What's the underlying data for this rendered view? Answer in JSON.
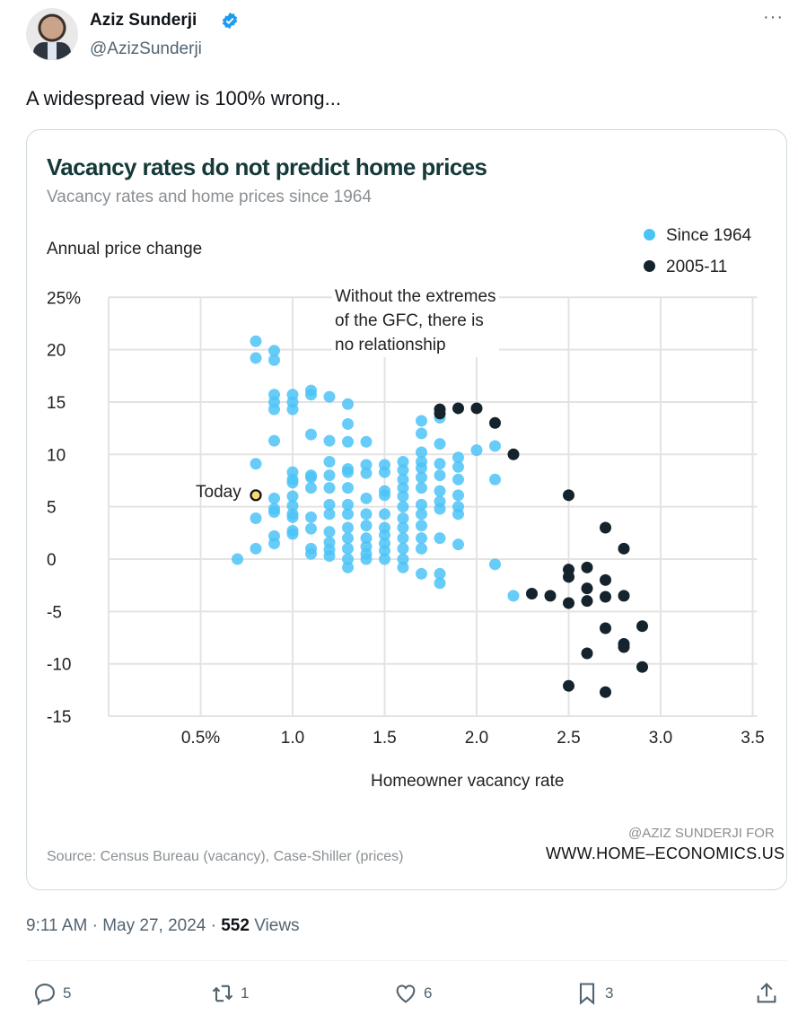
{
  "author": {
    "name": "Aziz Sunderji",
    "handle": "@AzizSunderji",
    "verified": true
  },
  "more_icon": "more-horizontal-icon",
  "tweet_text": "A widespread view is 100% wrong...",
  "meta": {
    "time": "9:11 AM",
    "date": "May 27, 2024",
    "views_count": "552",
    "views_label": "Views",
    "separator": "·"
  },
  "actions": {
    "replies": "5",
    "reposts": "1",
    "likes": "6",
    "bookmarks": "3"
  },
  "colors": {
    "since1964": "#4cc3f7",
    "gfc": "#14232c",
    "today": "#f5da7a",
    "title": "#16393a"
  },
  "chart_data": {
    "type": "scatter",
    "title": "Vacancy rates do not predict home prices",
    "subtitle": "Vacancy rates and home prices since 1964",
    "ylabel": "Annual price change",
    "xlabel": "Homeowner vacancy rate",
    "xlim": [
      0,
      3.5
    ],
    "ylim": [
      -15,
      25
    ],
    "x_ticks": [
      {
        "v": 0.5,
        "label": "0.5%"
      },
      {
        "v": 1.0,
        "label": "1.0"
      },
      {
        "v": 1.5,
        "label": "1.5"
      },
      {
        "v": 2.0,
        "label": "2.0"
      },
      {
        "v": 2.5,
        "label": "2.5"
      },
      {
        "v": 3.0,
        "label": "3.0"
      },
      {
        "v": 3.5,
        "label": "3.5"
      }
    ],
    "y_ticks": [
      {
        "v": 25,
        "label": "25%"
      },
      {
        "v": 20,
        "label": "20"
      },
      {
        "v": 15,
        "label": "15"
      },
      {
        "v": 10,
        "label": "10"
      },
      {
        "v": 5,
        "label": "5"
      },
      {
        "v": 0,
        "label": "0"
      },
      {
        "v": -5,
        "label": "-5"
      },
      {
        "v": -10,
        "label": "-10"
      },
      {
        "v": -15,
        "label": "-15"
      }
    ],
    "grid": true,
    "legend": {
      "placement": "top-right",
      "entries": [
        "Since 1964",
        "2005-11"
      ]
    },
    "annotations": {
      "gfc_lines": [
        "Without the extremes",
        "of the GFC, there is",
        "no relationship"
      ],
      "today": "Today"
    },
    "credit": [
      "@AZIZ SUNDERJI FOR",
      "WWW.HOME–ECONOMICS.US"
    ],
    "source": "Source: Census Bureau (vacancy), Case-Shiller (prices)",
    "today_point": {
      "x": 0.8,
      "y": 6.1
    },
    "series": [
      {
        "name": "Since 1964",
        "points": [
          [
            0.7,
            0
          ],
          [
            0.8,
            20.8
          ],
          [
            0.8,
            19.2
          ],
          [
            0.8,
            9.1
          ],
          [
            0.8,
            3.9
          ],
          [
            0.8,
            1.0
          ],
          [
            0.9,
            19.9
          ],
          [
            0.9,
            19.0
          ],
          [
            0.9,
            15.7
          ],
          [
            0.9,
            15.0
          ],
          [
            0.9,
            14.3
          ],
          [
            0.9,
            11.3
          ],
          [
            0.9,
            5.8
          ],
          [
            0.9,
            4.8
          ],
          [
            0.9,
            4.5
          ],
          [
            0.9,
            2.2
          ],
          [
            0.9,
            1.5
          ],
          [
            1.0,
            15.7
          ],
          [
            1.0,
            15.0
          ],
          [
            1.0,
            14.3
          ],
          [
            1.0,
            8.3
          ],
          [
            1.0,
            7.6
          ],
          [
            1.0,
            7.3
          ],
          [
            1.0,
            6.0
          ],
          [
            1.0,
            5.1
          ],
          [
            1.0,
            4.3
          ],
          [
            1.0,
            4.0
          ],
          [
            1.0,
            2.7
          ],
          [
            1.0,
            2.4
          ],
          [
            1.1,
            16.1
          ],
          [
            1.1,
            15.7
          ],
          [
            1.1,
            11.9
          ],
          [
            1.1,
            8.0
          ],
          [
            1.1,
            7.8
          ],
          [
            1.1,
            6.8
          ],
          [
            1.1,
            4.0
          ],
          [
            1.1,
            2.9
          ],
          [
            1.1,
            1.0
          ],
          [
            1.1,
            0.5
          ],
          [
            1.2,
            15.5
          ],
          [
            1.2,
            11.3
          ],
          [
            1.2,
            9.3
          ],
          [
            1.2,
            8.0
          ],
          [
            1.2,
            6.8
          ],
          [
            1.2,
            5.2
          ],
          [
            1.2,
            4.3
          ],
          [
            1.2,
            2.6
          ],
          [
            1.2,
            1.6
          ],
          [
            1.2,
            0.9
          ],
          [
            1.2,
            0.3
          ],
          [
            1.3,
            14.8
          ],
          [
            1.3,
            12.9
          ],
          [
            1.3,
            11.2
          ],
          [
            1.3,
            8.6
          ],
          [
            1.3,
            8.3
          ],
          [
            1.3,
            6.8
          ],
          [
            1.3,
            5.2
          ],
          [
            1.3,
            4.3
          ],
          [
            1.3,
            3.0
          ],
          [
            1.3,
            2.0
          ],
          [
            1.3,
            1.0
          ],
          [
            1.3,
            0
          ],
          [
            1.3,
            -0.8
          ],
          [
            1.4,
            11.2
          ],
          [
            1.4,
            9.0
          ],
          [
            1.4,
            8.2
          ],
          [
            1.4,
            5.8
          ],
          [
            1.4,
            4.3
          ],
          [
            1.4,
            3.2
          ],
          [
            1.4,
            2.0
          ],
          [
            1.4,
            1.2
          ],
          [
            1.4,
            0.5
          ],
          [
            1.4,
            0
          ],
          [
            1.5,
            9.0
          ],
          [
            1.5,
            8.3
          ],
          [
            1.5,
            6.5
          ],
          [
            1.5,
            6.1
          ],
          [
            1.5,
            4.3
          ],
          [
            1.5,
            3.0
          ],
          [
            1.5,
            2.3
          ],
          [
            1.5,
            1.5
          ],
          [
            1.5,
            0.8
          ],
          [
            1.5,
            0
          ],
          [
            1.6,
            9.3
          ],
          [
            1.6,
            8.5
          ],
          [
            1.6,
            7.6
          ],
          [
            1.6,
            6.8
          ],
          [
            1.6,
            6.0
          ],
          [
            1.6,
            5.0
          ],
          [
            1.6,
            3.9
          ],
          [
            1.6,
            3.0
          ],
          [
            1.6,
            2.0
          ],
          [
            1.6,
            1.0
          ],
          [
            1.6,
            0
          ],
          [
            1.6,
            -0.8
          ],
          [
            1.7,
            13.2
          ],
          [
            1.7,
            12.0
          ],
          [
            1.7,
            10.2
          ],
          [
            1.7,
            9.3
          ],
          [
            1.7,
            8.7
          ],
          [
            1.7,
            7.8
          ],
          [
            1.7,
            6.8
          ],
          [
            1.7,
            5.2
          ],
          [
            1.7,
            4.3
          ],
          [
            1.7,
            3.2
          ],
          [
            1.7,
            2.0
          ],
          [
            1.7,
            1.0
          ],
          [
            1.7,
            -1.4
          ],
          [
            1.8,
            13.5
          ],
          [
            1.8,
            11.0
          ],
          [
            1.8,
            9.1
          ],
          [
            1.8,
            8.0
          ],
          [
            1.8,
            6.5
          ],
          [
            1.8,
            5.5
          ],
          [
            1.8,
            4.8
          ],
          [
            1.8,
            2.0
          ],
          [
            1.8,
            -1.4
          ],
          [
            1.8,
            -2.3
          ],
          [
            1.9,
            9.7
          ],
          [
            1.9,
            8.8
          ],
          [
            1.9,
            7.6
          ],
          [
            1.9,
            6.1
          ],
          [
            1.9,
            5.0
          ],
          [
            1.9,
            4.3
          ],
          [
            1.9,
            1.4
          ],
          [
            2.0,
            10.4
          ],
          [
            2.1,
            10.8
          ],
          [
            2.1,
            7.6
          ],
          [
            2.1,
            -0.5
          ],
          [
            2.2,
            -3.5
          ]
        ]
      },
      {
        "name": "2005-11",
        "points": [
          [
            1.8,
            14.3
          ],
          [
            1.8,
            13.9
          ],
          [
            1.9,
            14.4
          ],
          [
            2.0,
            14.4
          ],
          [
            2.1,
            13.0
          ],
          [
            2.2,
            10.0
          ],
          [
            2.5,
            6.1
          ],
          [
            2.7,
            3.0
          ],
          [
            2.8,
            1.0
          ],
          [
            2.5,
            -1.0
          ],
          [
            2.6,
            -0.8
          ],
          [
            2.5,
            -1.7
          ],
          [
            2.7,
            -2.0
          ],
          [
            2.6,
            -2.8
          ],
          [
            2.3,
            -3.3
          ],
          [
            2.4,
            -3.5
          ],
          [
            2.5,
            -4.2
          ],
          [
            2.6,
            -4.0
          ],
          [
            2.7,
            -3.6
          ],
          [
            2.8,
            -3.5
          ],
          [
            2.7,
            -6.6
          ],
          [
            2.9,
            -6.4
          ],
          [
            2.8,
            -8.1
          ],
          [
            2.8,
            -8.4
          ],
          [
            2.6,
            -9.0
          ],
          [
            2.9,
            -10.3
          ],
          [
            2.5,
            -12.1
          ],
          [
            2.7,
            -12.7
          ]
        ]
      }
    ]
  }
}
